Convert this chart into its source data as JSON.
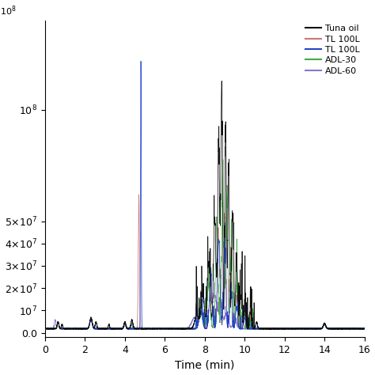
{
  "title": "",
  "xlabel": "Time (min)",
  "ylabel": "",
  "xlim": [
    0,
    16
  ],
  "ylim": [
    -2000000.0,
    140000000.0
  ],
  "legend_labels": [
    "Tuna oil",
    "TL 100L",
    "TL 100L",
    "ADL-30",
    "ADL-60"
  ],
  "legend_colors": [
    "#111111",
    "#cc7777",
    "#2244cc",
    "#44aa44",
    "#8877cc"
  ],
  "ytick_positions": [
    0,
    10000000.0,
    20000000.0,
    30000000.0,
    40000000.0,
    50000000.0,
    100000000.0
  ],
  "ytick_labels": [
    "0.0",
    "10$^7$",
    "2×10$^7$",
    "3×10$^7$",
    "4×10$^7$",
    "5×10$^7$",
    "10$^8$"
  ],
  "top_label": "10$^8$",
  "xticks": [
    0,
    2,
    4,
    6,
    8,
    10,
    12,
    14,
    16
  ],
  "background_color": "#ffffff"
}
